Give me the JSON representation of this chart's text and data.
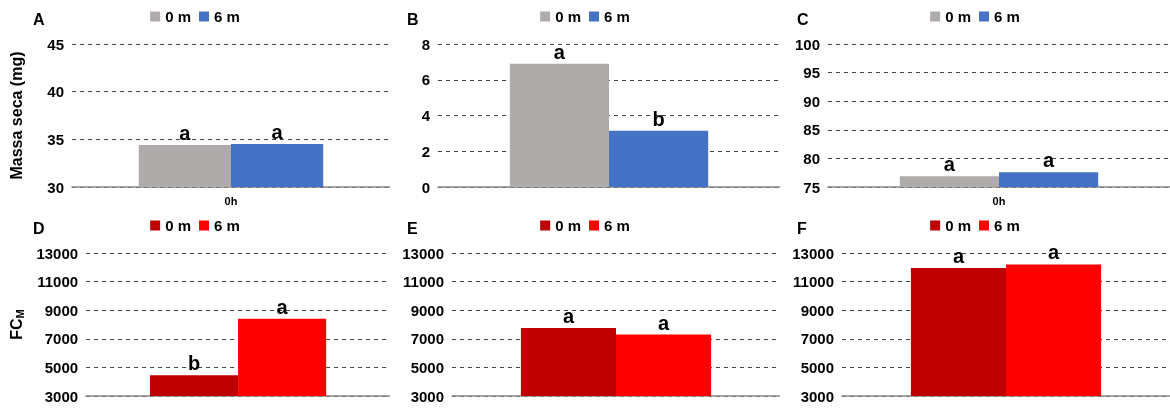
{
  "chart_data": [
    {
      "type": "bar",
      "title": "A",
      "ylabel": "Massa seca (mg)",
      "categories": [
        "0h"
      ],
      "ylim": [
        30,
        45
      ],
      "yticks": [
        30,
        35,
        40,
        45
      ],
      "grid": "y",
      "legend": "top",
      "series": [
        {
          "name": "0 m",
          "color": "#afabab",
          "values": [
            34.4
          ],
          "value_labels": [
            "a"
          ]
        },
        {
          "name": "6 m",
          "color": "#4472c4",
          "values": [
            34.5
          ],
          "value_labels": [
            "a"
          ]
        }
      ]
    },
    {
      "type": "bar",
      "title": "B",
      "categories": [
        null
      ],
      "ylim": [
        0,
        8
      ],
      "yticks": [
        0,
        2,
        4,
        6,
        8
      ],
      "grid": "y",
      "legend": "top",
      "series": [
        {
          "name": "0 m",
          "color": "#afabab",
          "values": [
            6.9
          ],
          "value_labels": [
            "a"
          ]
        },
        {
          "name": "6 m",
          "color": "#4472c4",
          "values": [
            3.15
          ],
          "value_labels": [
            "b"
          ]
        }
      ]
    },
    {
      "type": "bar",
      "title": "C",
      "categories": [
        "0h"
      ],
      "ylim": [
        75,
        100
      ],
      "yticks": [
        75,
        80,
        85,
        90,
        95,
        100
      ],
      "grid": "y",
      "legend": "top",
      "series": [
        {
          "name": "0 m",
          "color": "#afabab",
          "values": [
            76.9
          ],
          "value_labels": [
            "a"
          ]
        },
        {
          "name": "6 m",
          "color": "#4472c4",
          "values": [
            77.6
          ],
          "value_labels": [
            "a"
          ]
        }
      ]
    },
    {
      "type": "bar",
      "title": "D",
      "ylabel": "FC$_{M}$",
      "categories": [
        null
      ],
      "ylim": [
        3000,
        13000
      ],
      "yticks": [
        3000,
        5000,
        7000,
        9000,
        11000,
        13000
      ],
      "grid": "y",
      "legend": "top",
      "series": [
        {
          "name": "0 m",
          "color": "#c00000",
          "values": [
            4450
          ],
          "value_labels": [
            "b"
          ]
        },
        {
          "name": "6 m",
          "color": "#ff0000",
          "values": [
            8400
          ],
          "value_labels": [
            "a"
          ]
        }
      ]
    },
    {
      "type": "bar",
      "title": "E",
      "categories": [
        null
      ],
      "ylim": [
        3000,
        13000
      ],
      "yticks": [
        3000,
        5000,
        7000,
        9000,
        11000,
        13000
      ],
      "grid": "y",
      "legend": "top",
      "series": [
        {
          "name": "0 m",
          "color": "#c00000",
          "values": [
            7750
          ],
          "value_labels": [
            "a"
          ]
        },
        {
          "name": "6 m",
          "color": "#ff0000",
          "values": [
            7300
          ],
          "value_labels": [
            "a"
          ]
        }
      ]
    },
    {
      "type": "bar",
      "title": "F",
      "categories": [
        null
      ],
      "ylim": [
        3000,
        13000
      ],
      "yticks": [
        3000,
        5000,
        7000,
        9000,
        11000,
        13000
      ],
      "grid": "y",
      "legend": "top",
      "series": [
        {
          "name": "0 m",
          "color": "#c00000",
          "values": [
            11950
          ],
          "value_labels": [
            "a"
          ]
        },
        {
          "name": "6 m",
          "color": "#ff0000",
          "values": [
            12200
          ],
          "value_labels": [
            "a"
          ]
        }
      ]
    }
  ]
}
